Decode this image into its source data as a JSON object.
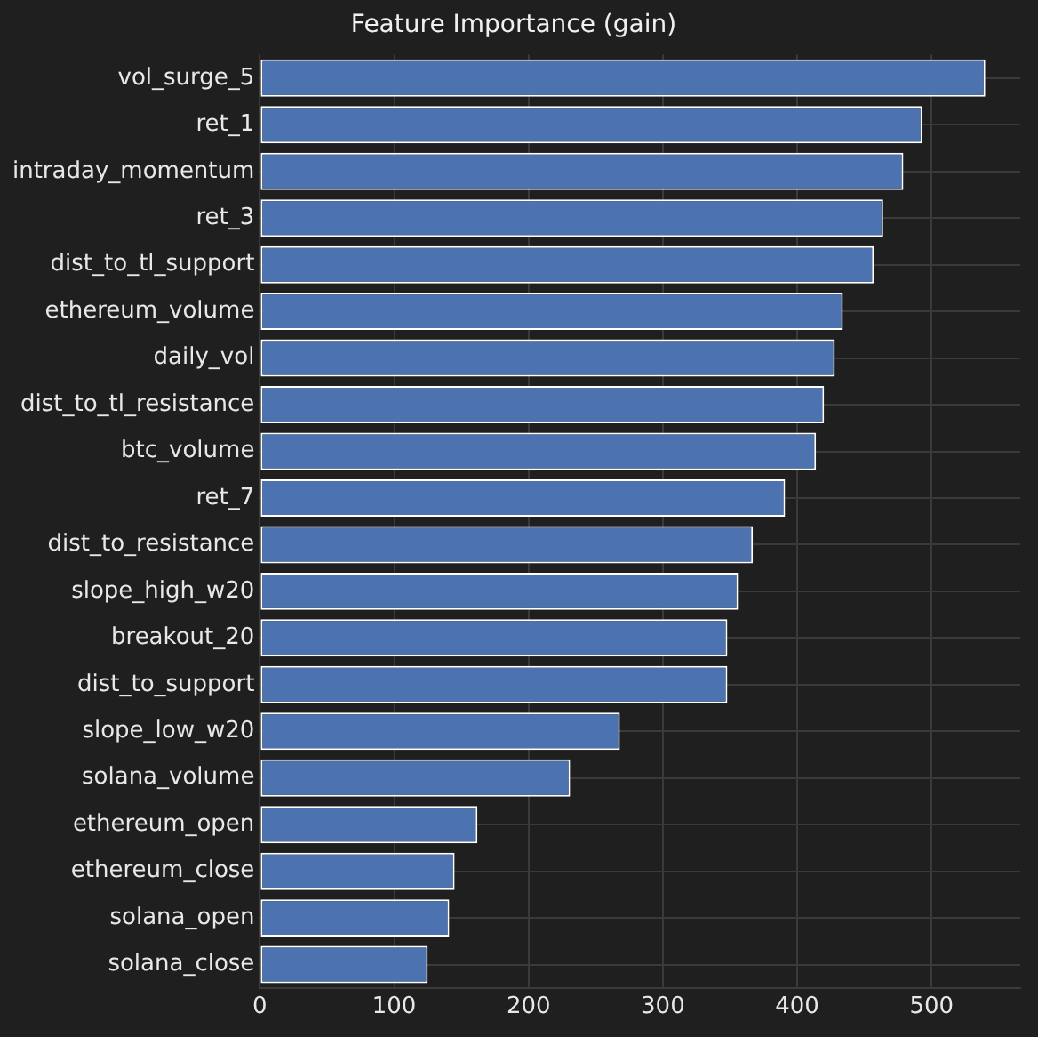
{
  "chart_data": {
    "type": "bar",
    "orientation": "horizontal",
    "title": "Feature Importance (gain)",
    "categories": [
      "vol_surge_5",
      "ret_1",
      "intraday_momentum",
      "ret_3",
      "dist_to_tl_support",
      "ethereum_volume",
      "daily_vol",
      "dist_to_tl_resistance",
      "btc_volume",
      "ret_7",
      "dist_to_resistance",
      "slope_high_w20",
      "breakout_20",
      "dist_to_support",
      "slope_low_w20",
      "solana_volume",
      "ethereum_open",
      "ethereum_close",
      "solana_open",
      "solana_close"
    ],
    "values": [
      540,
      493,
      479,
      464,
      457,
      434,
      428,
      420,
      414,
      391,
      367,
      356,
      348,
      348,
      268,
      231,
      162,
      145,
      141,
      125
    ],
    "color": "#4c72b0",
    "xlim": [
      0,
      566
    ],
    "xticks": [
      0,
      100,
      200,
      300,
      400,
      500
    ],
    "grid": true,
    "legend": false
  }
}
